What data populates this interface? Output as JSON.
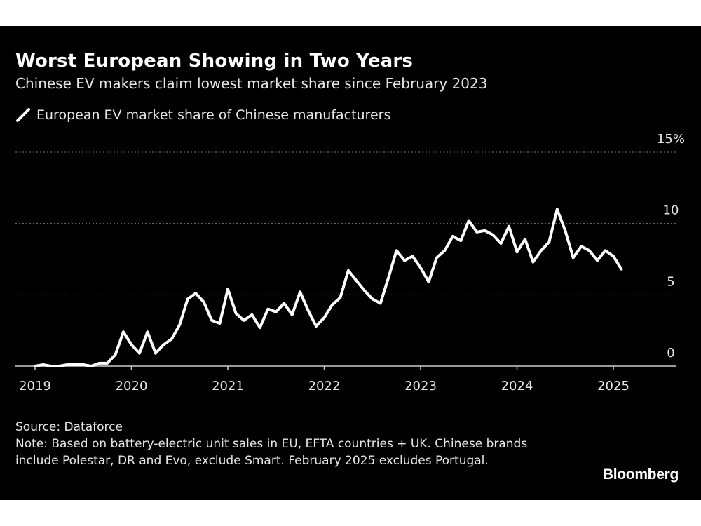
{
  "header": {
    "title": "Worst European Showing in Two Years",
    "subtitle": "Chinese EV makers claim lowest market share since February 2023"
  },
  "legend": {
    "label": "European EV market share of Chinese manufacturers"
  },
  "footer": {
    "source": "Source: Dataforce",
    "note": "Note: Based on battery-electric unit sales in EU, EFTA countries + UK. Chinese brands include Polestar, DR and Evo, exclude Smart. February 2025 excludes Portugal.",
    "brand": "Bloomberg"
  },
  "colors": {
    "background": "#000000",
    "line": "#ffffff",
    "grid": "#777777",
    "text": "#e6e6e6"
  },
  "chart_data": {
    "type": "line",
    "title": "Worst European Showing in Two Years",
    "subtitle": "Chinese EV makers claim lowest market share since February 2023",
    "xlabel": "",
    "ylabel": "",
    "x_range": [
      "2019-01",
      "2025-12"
    ],
    "ylim": [
      0,
      15
    ],
    "y_ticks": [
      0,
      5,
      10,
      15
    ],
    "y_tick_labels": [
      "0",
      "5",
      "10",
      "15%"
    ],
    "x_ticks": [
      "2019-01",
      "2020-01",
      "2021-01",
      "2022-01",
      "2023-01",
      "2024-01",
      "2025-01"
    ],
    "x_tick_labels": [
      "2019",
      "2020",
      "2021",
      "2022",
      "2023",
      "2024",
      "2025"
    ],
    "grid": "horizontal dotted",
    "legend_position": "top-left",
    "series": [
      {
        "name": "European EV market share of Chinese manufacturers",
        "x": [
          "2019-01",
          "2019-02",
          "2019-03",
          "2019-04",
          "2019-05",
          "2019-06",
          "2019-07",
          "2019-08",
          "2019-09",
          "2019-10",
          "2019-11",
          "2019-12",
          "2020-01",
          "2020-02",
          "2020-03",
          "2020-04",
          "2020-05",
          "2020-06",
          "2020-07",
          "2020-08",
          "2020-09",
          "2020-10",
          "2020-11",
          "2020-12",
          "2021-01",
          "2021-02",
          "2021-03",
          "2021-04",
          "2021-05",
          "2021-06",
          "2021-07",
          "2021-08",
          "2021-09",
          "2021-10",
          "2021-11",
          "2021-12",
          "2022-01",
          "2022-02",
          "2022-03",
          "2022-04",
          "2022-05",
          "2022-06",
          "2022-07",
          "2022-08",
          "2022-09",
          "2022-10",
          "2022-11",
          "2022-12",
          "2023-01",
          "2023-02",
          "2023-03",
          "2023-04",
          "2023-05",
          "2023-06",
          "2023-07",
          "2023-08",
          "2023-09",
          "2023-10",
          "2023-11",
          "2023-12",
          "2024-01",
          "2024-02",
          "2024-03",
          "2024-04",
          "2024-05",
          "2024-06",
          "2024-07",
          "2024-08",
          "2024-09",
          "2024-10",
          "2024-11",
          "2024-12",
          "2025-01",
          "2025-02"
        ],
        "y": [
          0.0,
          0.1,
          0.0,
          0.0,
          0.1,
          0.1,
          0.1,
          0.0,
          0.2,
          0.2,
          0.8,
          2.4,
          1.5,
          0.9,
          2.4,
          0.9,
          1.5,
          1.9,
          2.9,
          4.7,
          5.1,
          4.5,
          3.2,
          3.0,
          5.4,
          3.7,
          3.2,
          3.6,
          2.7,
          4.0,
          3.8,
          4.4,
          3.6,
          5.2,
          3.9,
          2.8,
          3.4,
          4.3,
          4.8,
          6.7,
          6.0,
          5.3,
          4.7,
          4.4,
          6.2,
          8.1,
          7.4,
          7.7,
          6.9,
          5.9,
          7.6,
          8.1,
          9.1,
          8.8,
          10.2,
          9.4,
          9.5,
          9.2,
          8.6,
          9.8,
          8.0,
          8.9,
          7.3,
          8.1,
          8.7,
          11.0,
          9.5,
          7.6,
          8.4,
          8.1,
          7.4,
          8.1,
          7.7,
          6.8
        ]
      }
    ]
  }
}
